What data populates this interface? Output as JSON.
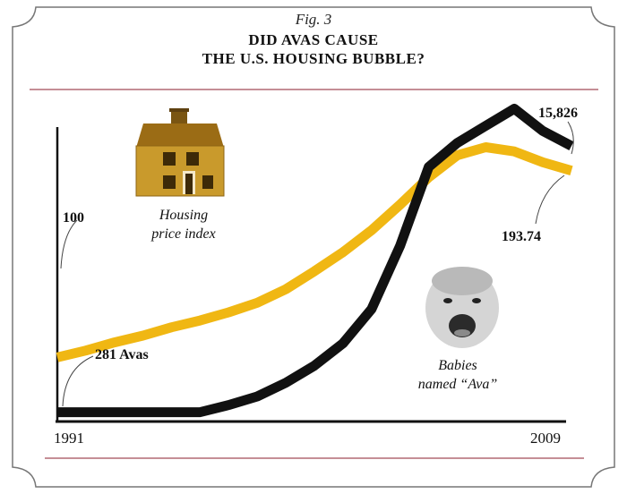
{
  "figure_label": "Fig. 3",
  "title_lines": [
    "DID AVAS CAUSE",
    "THE U.S. HOUSING BUBBLE?"
  ],
  "colors": {
    "housing": "#f0b713",
    "avas": "#111111",
    "rule": "#8b1c2c",
    "border": "#777777"
  },
  "icons": {
    "house": "house-icon",
    "baby": "baby-face-icon"
  },
  "chart_data": {
    "type": "line",
    "title": "DID AVAS CAUSE THE U.S. HOUSING BUBBLE?",
    "xlabel": "",
    "ylabel": "",
    "x": [
      1991,
      1992,
      1993,
      1994,
      1995,
      1996,
      1997,
      1998,
      1999,
      2000,
      2001,
      2002,
      2003,
      2004,
      2005,
      2006,
      2007,
      2008,
      2009
    ],
    "x_labels": {
      "start": "1991",
      "end": "2009"
    },
    "xlim": [
      1991,
      2009
    ],
    "series": [
      {
        "name": "Housing price index",
        "label_lines": [
          "Housing",
          "price index"
        ],
        "values": [
          100,
          103.4,
          107.5,
          110.9,
          115.1,
          118.5,
          122.6,
          127.4,
          134.2,
          143.2,
          152.8,
          163.8,
          176.7,
          190.4,
          201.4,
          205.5,
          203.4,
          197.9,
          193.74
        ],
        "start_label": "100",
        "end_label": "193.74",
        "ylim": [
          70,
          230
        ]
      },
      {
        "name": "Babies named “Ava”",
        "label_lines": [
          "Babies",
          "named “Ava”"
        ],
        "values": [
          281,
          281,
          281,
          281,
          281,
          281,
          700,
          1200,
          2000,
          3000,
          4300,
          6300,
          10000,
          14600,
          16000,
          17000,
          18000,
          16700,
          15826
        ],
        "start_label": "281 Avas",
        "end_label": "15,826",
        "ylim": [
          0,
          18600
        ]
      }
    ]
  }
}
